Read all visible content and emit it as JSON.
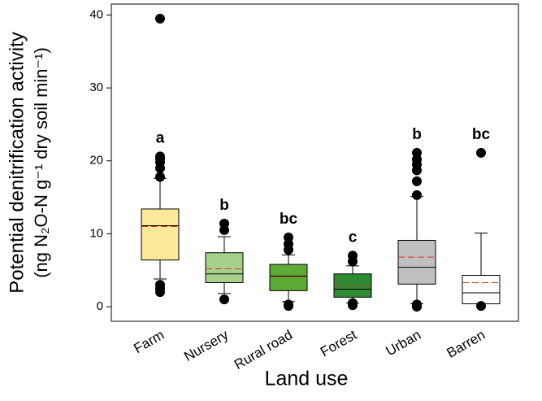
{
  "chart_data": {
    "type": "box",
    "x_label": "Land use",
    "y_label": [
      "Potential denitrification activity",
      "(ng N₂O-N g⁻¹ dry soil min⁻¹)"
    ],
    "categories": [
      "Farm",
      "Nursery",
      "Rural road",
      "Forest",
      "Urban",
      "Barren"
    ],
    "boxes": [
      {
        "whislo": 3.8,
        "q1": 6.4,
        "med": 11.1,
        "mean": 11.0,
        "q3": 13.4,
        "whishi": 17.6,
        "fliers": [
          2.0,
          2.5,
          3.0,
          17.8,
          19.0,
          19.8,
          20.3,
          20.6,
          39.5
        ],
        "color": "#fbe89a"
      },
      {
        "whislo": 1.8,
        "q1": 3.3,
        "med": 4.5,
        "mean": 5.2,
        "q3": 7.4,
        "whishi": 9.6,
        "fliers": [
          1.0,
          10.5,
          11.4
        ],
        "color": "#a6d18a"
      },
      {
        "whislo": 0.7,
        "q1": 2.2,
        "med": 4.2,
        "mean": 4.1,
        "q3": 5.8,
        "whishi": 7.1,
        "fliers": [
          0.1,
          0.3,
          7.8,
          8.6,
          9.5
        ],
        "color": "#5dab36"
      },
      {
        "whislo": 0.5,
        "q1": 1.3,
        "med": 2.4,
        "mean": 2.9,
        "q3": 4.5,
        "whishi": 5.6,
        "fliers": [
          0.2,
          0.5,
          6.2,
          7.0
        ],
        "color": "#2f8a33"
      },
      {
        "whislo": 0.4,
        "q1": 3.1,
        "med": 5.4,
        "mean": 6.8,
        "q3": 9.1,
        "whishi": 15.1,
        "fliers": [
          0.0,
          0.3,
          15.3,
          17.2,
          18.7,
          19.5,
          20.2,
          21.1
        ],
        "color": "#c0c0c0"
      },
      {
        "whislo": 0.4,
        "q1": 0.4,
        "med": 1.9,
        "mean": 3.3,
        "q3": 4.3,
        "whishi": 10.1,
        "fliers": [
          0.1,
          21.1
        ],
        "color": "#ffffff"
      }
    ],
    "letters": [
      "a",
      "b",
      "bc",
      "c",
      "b",
      "bc"
    ],
    "mean_color": "#d9342b",
    "ylim": [
      -2,
      41.5
    ],
    "yticks": [
      0,
      10,
      20,
      30,
      40
    ]
  }
}
